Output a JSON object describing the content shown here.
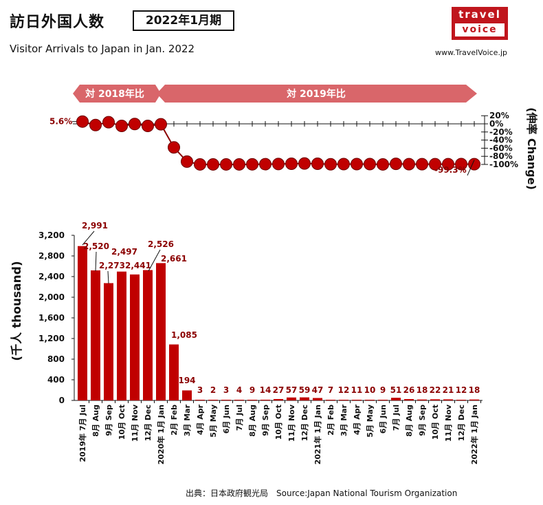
{
  "header": {
    "title_jp": "訪日外国人数",
    "period": "2022年1月期",
    "title_en": "Visitor Arrivals to Japan in Jan. 2022"
  },
  "logo": {
    "line1": "travel",
    "line2": "voice",
    "brand_color": "#c0161d"
  },
  "site_url": "www.TravelVoice.jp",
  "source": "出典：日本政府観光局　Source:Japan National Tourism Organization",
  "colors": {
    "bar": "#c00000",
    "banner": "#d9666a",
    "label": "#8b0000"
  },
  "chart_data": [
    {
      "type": "line",
      "banners": [
        "対 2018年比",
        "対 2019年比"
      ],
      "y_right_label": "(伸率 Change)",
      "y_ticks": [
        "20%",
        "0%",
        "-20%",
        "-40%",
        "-60%",
        "-80%",
        "-100%"
      ],
      "ylim": [
        -100,
        20
      ],
      "x": [
        "2019年 7月 Jul",
        "8月 Aug",
        "9月 Sep",
        "10月 Oct",
        "11月 Nov",
        "12月 Dec",
        "2020年 1月 Jan",
        "2月 Feb",
        "3月 Mar",
        "4月 Apr",
        "5月 May",
        "6月 Jun",
        "7月 Jul",
        "8月 Aug",
        "9月 Sep",
        "10月 Oct",
        "11月 Nov",
        "12月 Dec",
        "2021年 1月 Jan",
        "2月 Feb",
        "3月 Mar",
        "4月 Apr",
        "5月 May",
        "6月 Jun",
        "7月 Jul",
        "8月 Aug",
        "9月 Sep",
        "10月 Oct",
        "11月 Nov",
        "12月 Dec",
        "2022年 1月 Jan"
      ],
      "values": [
        5.6,
        -3.0,
        4.0,
        -5.0,
        -0.5,
        -5.0,
        -1.0,
        -58.0,
        -93.0,
        -99.9,
        -99.9,
        -99.9,
        -99.9,
        -99.7,
        -99.4,
        -99.0,
        -98.3,
        -97.7,
        -98.3,
        -99.5,
        -99.2,
        -99.2,
        -99.2,
        -99.9,
        -98.5,
        -99.3,
        -99.3,
        -99.3,
        -99.3,
        -99.2,
        -99.3
      ],
      "labels": [
        {
          "index": 0,
          "text": "5.6%"
        },
        {
          "index": 30,
          "text": "-99.3%"
        }
      ]
    },
    {
      "type": "bar",
      "y_label": "(千人 thousand)",
      "y_ticks": [
        "3,200",
        "2,800",
        "2,400",
        "2,000",
        "1,600",
        "1,200",
        "800",
        "400",
        "0"
      ],
      "ylim": [
        0,
        3200
      ],
      "categories": [
        "2019年 7月 Jul",
        "8月 Aug",
        "9月 Sep",
        "10月 Oct",
        "11月 Nov",
        "12月 Dec",
        "2020年 1月 Jan",
        "2月 Feb",
        "3月 Mar",
        "4月 Apr",
        "5月 May",
        "6月 Jun",
        "7月 Jul",
        "8月 Aug",
        "9月 Sep",
        "10月 Oct",
        "11月 Nov",
        "12月 Dec",
        "2021年 1月 Jan",
        "2月 Feb",
        "3月 Mar",
        "4月 Apr",
        "5月 May",
        "6月 Jun",
        "7月 Jul",
        "8月 Aug",
        "9月 Sep",
        "10月 Oct",
        "11月 Nov",
        "12月 Dec",
        "2022年 1月 Jan"
      ],
      "values": [
        2991,
        2520,
        2273,
        2497,
        2441,
        2526,
        2661,
        1085,
        194,
        3,
        2,
        3,
        4,
        9,
        14,
        27,
        57,
        59,
        47,
        7,
        12,
        11,
        10,
        9,
        51,
        26,
        18,
        22,
        21,
        12,
        18
      ],
      "value_labels": [
        "2,991",
        "2,520",
        "2,273",
        "2,497",
        "2,441",
        "2,526",
        "2,661",
        "1,085",
        "194",
        "3",
        "2",
        "3",
        "4",
        "9",
        "14",
        "27",
        "57",
        "59",
        "47",
        "7",
        "12",
        "11",
        "10",
        "9",
        "51",
        "26",
        "18",
        "22",
        "21",
        "12",
        "18"
      ]
    }
  ]
}
